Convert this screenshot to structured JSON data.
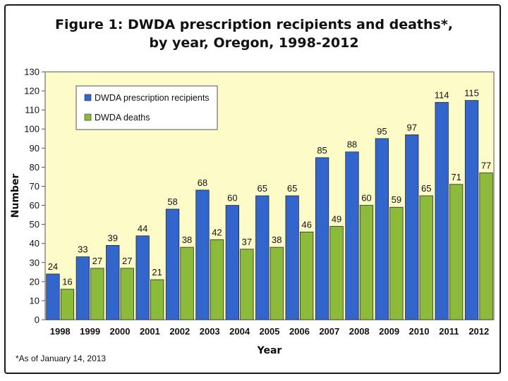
{
  "chart_data": {
    "type": "bar",
    "title": "Figure 1: DWDA prescription recipients and deaths*,",
    "subtitle": "by year, Oregon, 1998-2012",
    "xlabel": "Year",
    "ylabel": "Number",
    "ylim": [
      0,
      130
    ],
    "ytick_step": 10,
    "grid": false,
    "legend_position": "top-left",
    "categories": [
      "1998",
      "1999",
      "2000",
      "2001",
      "2002",
      "2003",
      "2004",
      "2005",
      "2006",
      "2007",
      "2008",
      "2009",
      "2010",
      "2011",
      "2012"
    ],
    "series": [
      {
        "name": "DWDA prescription recipients",
        "color": "#3366cc",
        "values": [
          24,
          33,
          39,
          44,
          58,
          68,
          60,
          65,
          65,
          85,
          88,
          95,
          97,
          114,
          115
        ]
      },
      {
        "name": "DWDA deaths",
        "color": "#8cbb3c",
        "values": [
          16,
          27,
          27,
          21,
          38,
          42,
          37,
          38,
          46,
          49,
          60,
          59,
          65,
          71,
          77
        ]
      }
    ],
    "footnote": "*As of January 14, 2013",
    "plot_background": "#fdfcc8"
  }
}
